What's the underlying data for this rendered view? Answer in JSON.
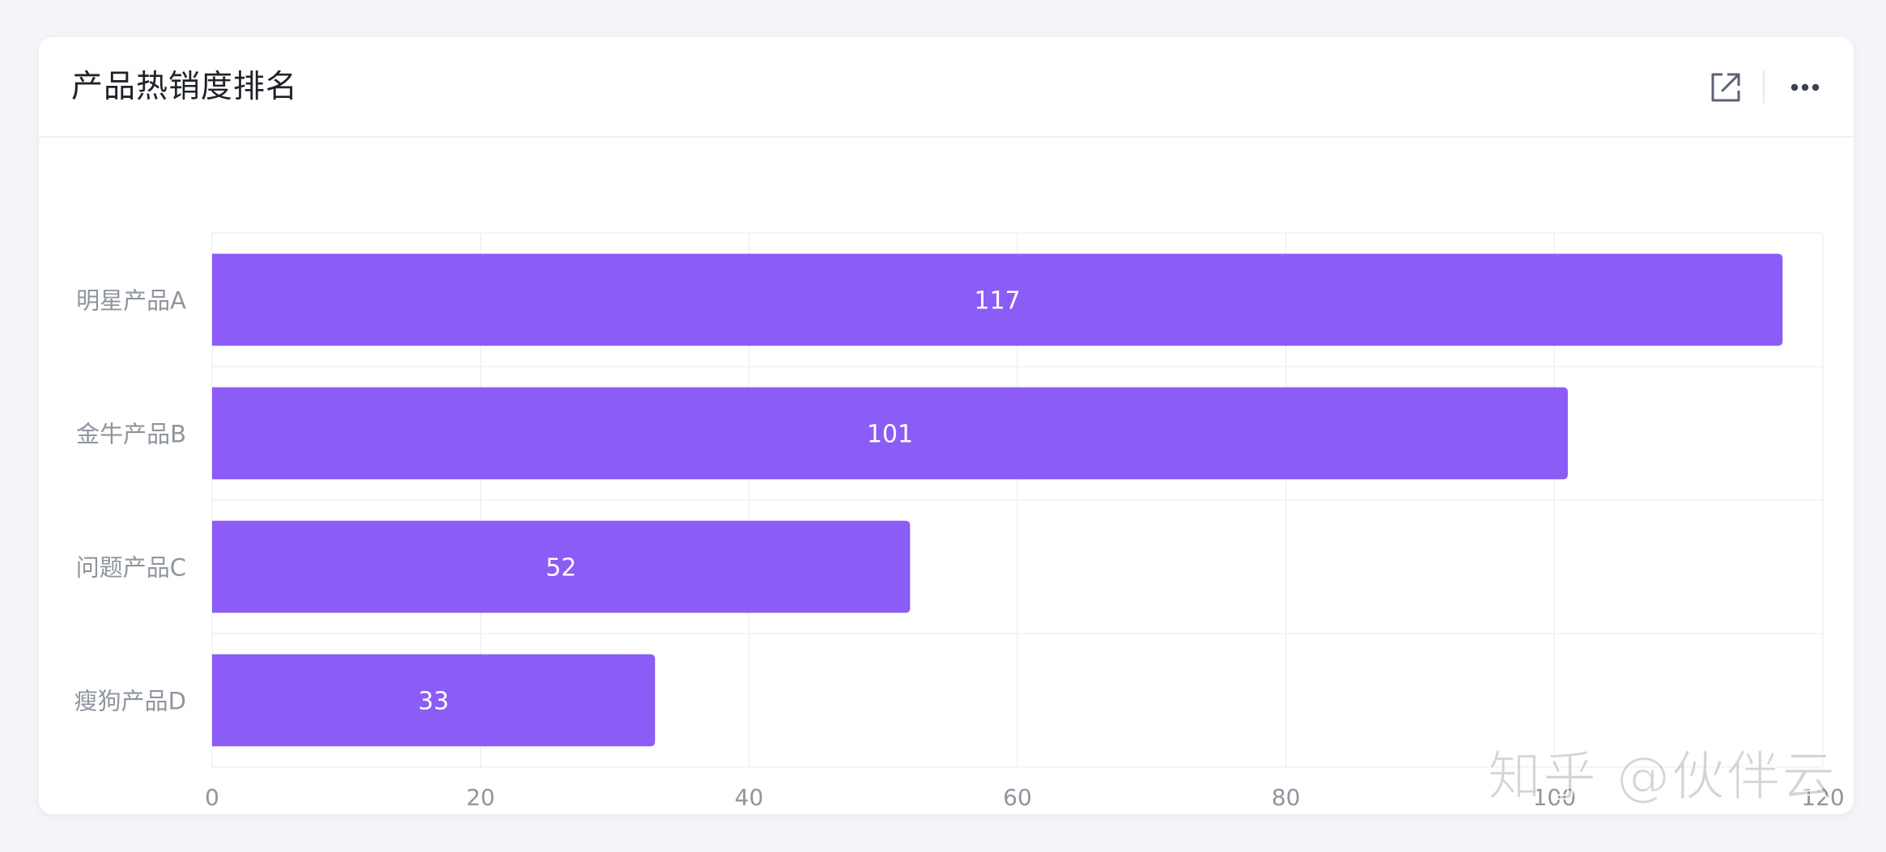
{
  "card": {
    "title": "产品热销度排名"
  },
  "watermark": "知乎 @伙伴云",
  "colors": {
    "bar": "#8b5cf6",
    "grid": "#eef0f3",
    "tick_text": "#8f959e",
    "bar_label": "#ffffff"
  },
  "icons": {
    "expand": "external-link-icon",
    "more": "more-horizontal-icon"
  },
  "chart_data": {
    "type": "bar",
    "orientation": "horizontal",
    "title": "产品热销度排名",
    "categories": [
      "明星产品A",
      "金牛产品B",
      "问题产品C",
      "瘦狗产品D"
    ],
    "values": [
      117,
      101,
      52,
      33
    ],
    "data_labels": true,
    "xlim": [
      0,
      120
    ],
    "xticks": [
      0,
      20,
      40,
      60,
      80,
      100,
      120
    ],
    "grid": true,
    "legend": "none",
    "xlabel": "",
    "ylabel": ""
  }
}
